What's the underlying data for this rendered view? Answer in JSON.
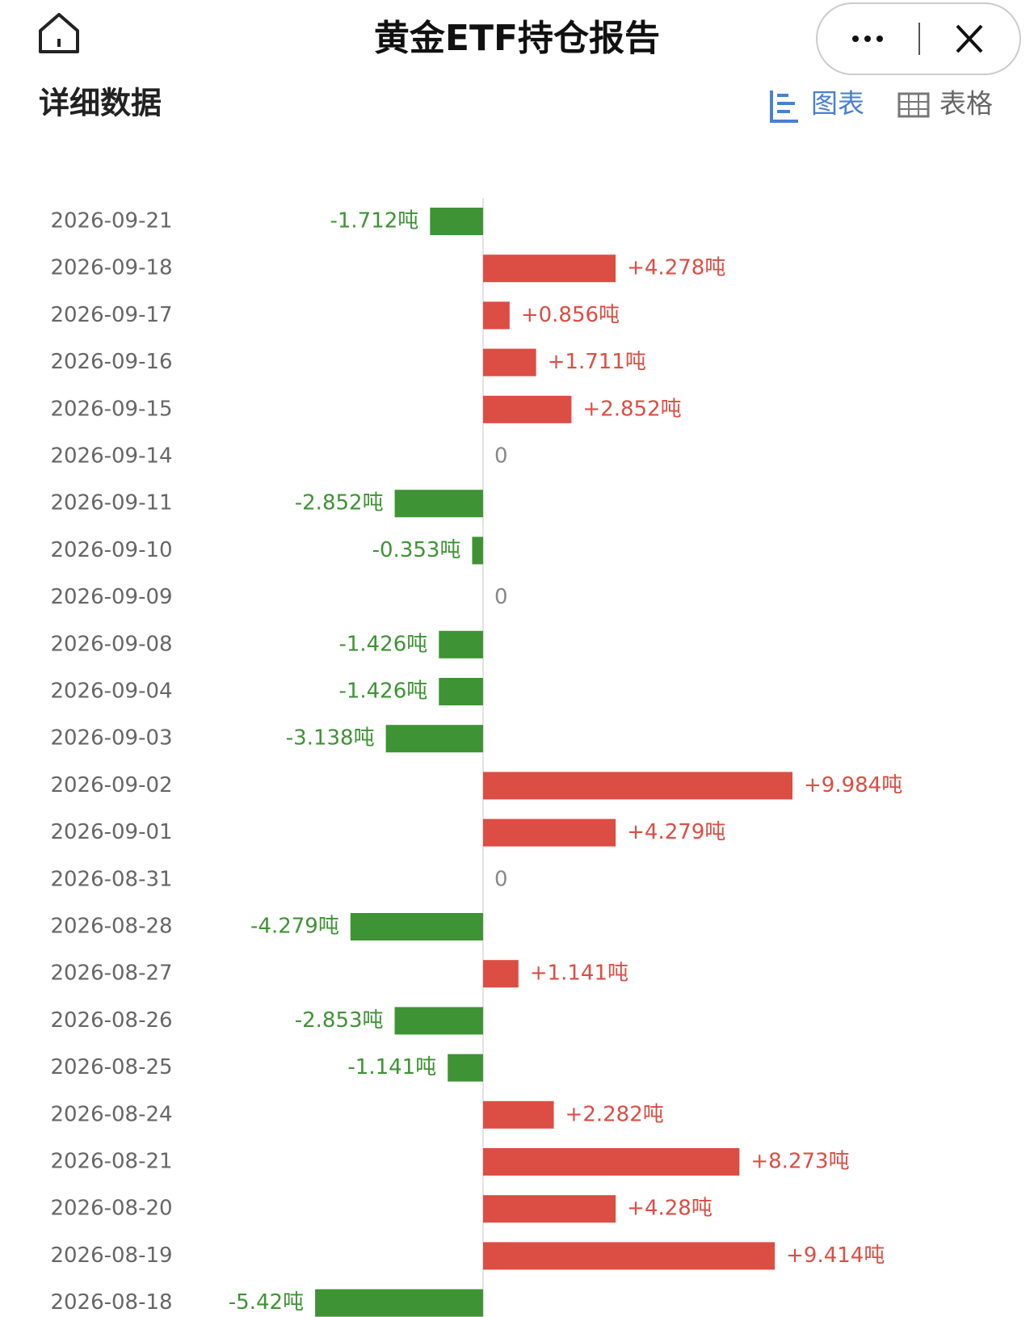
{
  "header": {
    "title": "黄金ETF持仓报告"
  },
  "section": {
    "title": "详细数据",
    "tabs": [
      "图表",
      "表格"
    ]
  },
  "chart_data": {
    "type": "bar",
    "orientation": "horizontal",
    "categories": [
      "2026-09-21",
      "2026-09-18",
      "2026-09-17",
      "2026-09-16",
      "2026-09-15",
      "2026-09-14",
      "2026-09-11",
      "2026-09-10",
      "2026-09-09",
      "2026-09-08",
      "2026-09-04",
      "2026-09-03",
      "2026-09-02",
      "2026-09-01",
      "2026-08-31",
      "2026-08-28",
      "2026-08-27",
      "2026-08-26",
      "2026-08-25",
      "2026-08-24",
      "2026-08-21",
      "2026-08-20",
      "2026-08-19",
      "2026-08-18"
    ],
    "values": [
      -1.712,
      4.278,
      0.856,
      1.711,
      2.852,
      0,
      -2.852,
      -0.353,
      0,
      -1.426,
      -1.426,
      -3.138,
      9.984,
      4.279,
      0,
      -4.279,
      1.141,
      -2.853,
      -1.141,
      2.282,
      8.273,
      4.28,
      9.414,
      -5.42
    ],
    "value_labels": [
      "-1.712吨",
      "+4.278吨",
      "+0.856吨",
      "+1.711吨",
      "+2.852吨",
      "0",
      "-2.852吨",
      "-0.353吨",
      "0",
      "-1.426吨",
      "-1.426吨",
      "-3.138吨",
      "+9.984吨",
      "+4.279吨",
      "0",
      "-4.279吨",
      "+1.141吨",
      "-2.853吨",
      "-1.141吨",
      "+2.282吨",
      "+8.273吨",
      "+4.28吨",
      "+9.414吨",
      "-5.42吨"
    ],
    "positive_color": "#dc4d43",
    "negative_color": "#3e9334",
    "zero_color": "#888888"
  }
}
